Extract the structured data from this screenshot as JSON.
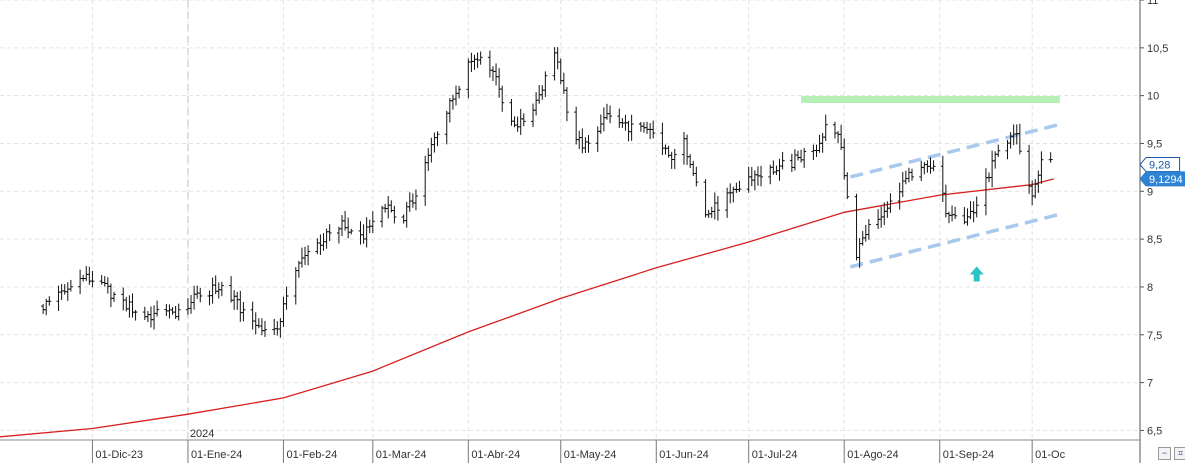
{
  "chart_data": {
    "type": "ohlc",
    "y_range": [
      6.4,
      11.0
    ],
    "x_range_days": [
      -61,
      309
    ],
    "y_ticks": [
      {
        "value": 6.5,
        "label": "6,5"
      },
      {
        "value": 7,
        "label": "7"
      },
      {
        "value": 7.5,
        "label": "7,5"
      },
      {
        "value": 8,
        "label": "8"
      },
      {
        "value": 8.5,
        "label": "8,5"
      },
      {
        "value": 9,
        "label": "9"
      },
      {
        "value": 9.5,
        "label": "9,5"
      },
      {
        "value": 10,
        "label": "10"
      },
      {
        "value": 10.5,
        "label": "10,5"
      },
      {
        "value": 11,
        "label": "11"
      }
    ],
    "x_ticks": [
      {
        "date": "2023-12-01",
        "label": "01-Dic-23"
      },
      {
        "date": "2024-01-01",
        "label": "01-Ene-24"
      },
      {
        "date": "2024-02-01",
        "label": "01-Feb-24"
      },
      {
        "date": "2024-03-01",
        "label": "01-Mar-24"
      },
      {
        "date": "2024-04-01",
        "label": "01-Abr-24"
      },
      {
        "date": "2024-05-01",
        "label": "01-May-24"
      },
      {
        "date": "2024-06-01",
        "label": "01-Jun-24"
      },
      {
        "date": "2024-07-01",
        "label": "01-Jul-24"
      },
      {
        "date": "2024-08-01",
        "label": "01-Ago-24"
      },
      {
        "date": "2024-09-01",
        "label": "01-Sep-24"
      },
      {
        "date": "2024-10-01",
        "label": "01-Oc"
      }
    ],
    "year_marker": {
      "date": "2024-01-01",
      "label": "2024"
    },
    "grid": true,
    "price_anchors": [
      [
        "2023-11-15",
        7.8
      ],
      [
        "2023-11-22",
        7.95
      ],
      [
        "2023-11-28",
        8.1
      ],
      [
        "2023-12-03",
        8.05
      ],
      [
        "2023-12-10",
        7.85
      ],
      [
        "2023-12-18",
        7.7
      ],
      [
        "2023-12-27",
        7.72
      ],
      [
        "2024-01-07",
        7.95
      ],
      [
        "2024-01-12",
        8.0
      ],
      [
        "2024-01-20",
        7.7
      ],
      [
        "2024-01-25",
        7.55
      ],
      [
        "2024-01-31",
        7.6
      ],
      [
        "2024-02-03",
        8.1
      ],
      [
        "2024-02-10",
        8.4
      ],
      [
        "2024-02-20",
        8.65
      ],
      [
        "2024-02-26",
        8.5
      ],
      [
        "2024-03-06",
        8.85
      ],
      [
        "2024-03-09",
        8.65
      ],
      [
        "2024-03-14",
        8.9
      ],
      [
        "2024-03-21",
        9.55
      ],
      [
        "2024-03-26",
        9.9
      ],
      [
        "2024-04-01",
        10.35
      ],
      [
        "2024-04-05",
        10.45
      ],
      [
        "2024-04-10",
        10.2
      ],
      [
        "2024-04-14",
        9.75
      ],
      [
        "2024-04-18",
        9.7
      ],
      [
        "2024-04-23",
        9.95
      ],
      [
        "2024-04-29",
        10.4
      ],
      [
        "2024-05-01",
        10.2
      ],
      [
        "2024-05-04",
        9.6
      ],
      [
        "2024-05-10",
        9.45
      ],
      [
        "2024-05-15",
        9.8
      ],
      [
        "2024-05-21",
        9.7
      ],
      [
        "2024-05-31",
        9.6
      ],
      [
        "2024-06-05",
        9.35
      ],
      [
        "2024-06-10",
        9.5
      ],
      [
        "2024-06-14",
        9.15
      ],
      [
        "2024-06-17",
        8.75
      ],
      [
        "2024-06-25",
        8.95
      ],
      [
        "2024-07-02",
        9.15
      ],
      [
        "2024-07-15",
        9.3
      ],
      [
        "2024-07-24",
        9.5
      ],
      [
        "2024-07-27",
        9.8
      ],
      [
        "2024-07-31",
        9.45
      ],
      [
        "2024-08-02",
        8.95
      ],
      [
        "2024-08-05",
        8.35
      ],
      [
        "2024-08-09",
        8.65
      ],
      [
        "2024-08-15",
        8.85
      ],
      [
        "2024-08-20",
        9.1
      ],
      [
        "2024-08-28",
        9.25
      ],
      [
        "2024-08-31",
        9.3
      ],
      [
        "2024-09-03",
        8.8
      ],
      [
        "2024-09-08",
        8.7
      ],
      [
        "2024-09-12",
        8.75
      ],
      [
        "2024-09-15",
        9.05
      ],
      [
        "2024-09-22",
        9.55
      ],
      [
        "2024-09-26",
        9.55
      ],
      [
        "2024-09-30",
        9.1
      ],
      [
        "2024-10-01",
        8.95
      ],
      [
        "2024-10-04",
        9.35
      ],
      [
        "2024-10-07",
        9.28
      ]
    ],
    "moving_average": {
      "color": "#d62020",
      "points": [
        [
          "2023-10-31",
          6.43
        ],
        [
          "2023-12-01",
          6.52
        ],
        [
          "2024-01-01",
          6.67
        ],
        [
          "2024-02-01",
          6.84
        ],
        [
          "2024-03-01",
          7.12
        ],
        [
          "2024-04-01",
          7.53
        ],
        [
          "2024-05-01",
          7.88
        ],
        [
          "2024-06-01",
          8.2
        ],
        [
          "2024-07-01",
          8.47
        ],
        [
          "2024-08-01",
          8.78
        ],
        [
          "2024-09-01",
          8.96
        ],
        [
          "2024-10-01",
          9.07
        ],
        [
          "2024-10-08",
          9.13
        ]
      ]
    },
    "resistance_line": {
      "from": "2024-07-18",
      "to": "2024-10-10",
      "value": 9.96,
      "color": "#b6f0b6"
    },
    "channel_upper": {
      "from": [
        "2024-08-03",
        9.15
      ],
      "to": [
        "2024-10-10",
        9.7
      ],
      "color": "#a9c8ee"
    },
    "channel_lower": {
      "from": [
        "2024-08-03",
        8.21
      ],
      "to": [
        "2024-10-10",
        8.76
      ],
      "color": "#a9c8ee"
    },
    "arrow_marker": {
      "date": "2024-09-13",
      "value": 8.13,
      "color": "#2ac3c3"
    },
    "price_labels": [
      {
        "value": 9.28,
        "label": "9,28",
        "bg": "#ffffff",
        "fg": "#1a5aa6"
      },
      {
        "value": 9.1294,
        "label": "9,1294",
        "bg": "#2d83d4",
        "fg": "#ffffff"
      }
    ]
  },
  "controls": {
    "bottom_right_left_icon": "minus-icon",
    "bottom_right_right_icon": "indicator-icon"
  }
}
